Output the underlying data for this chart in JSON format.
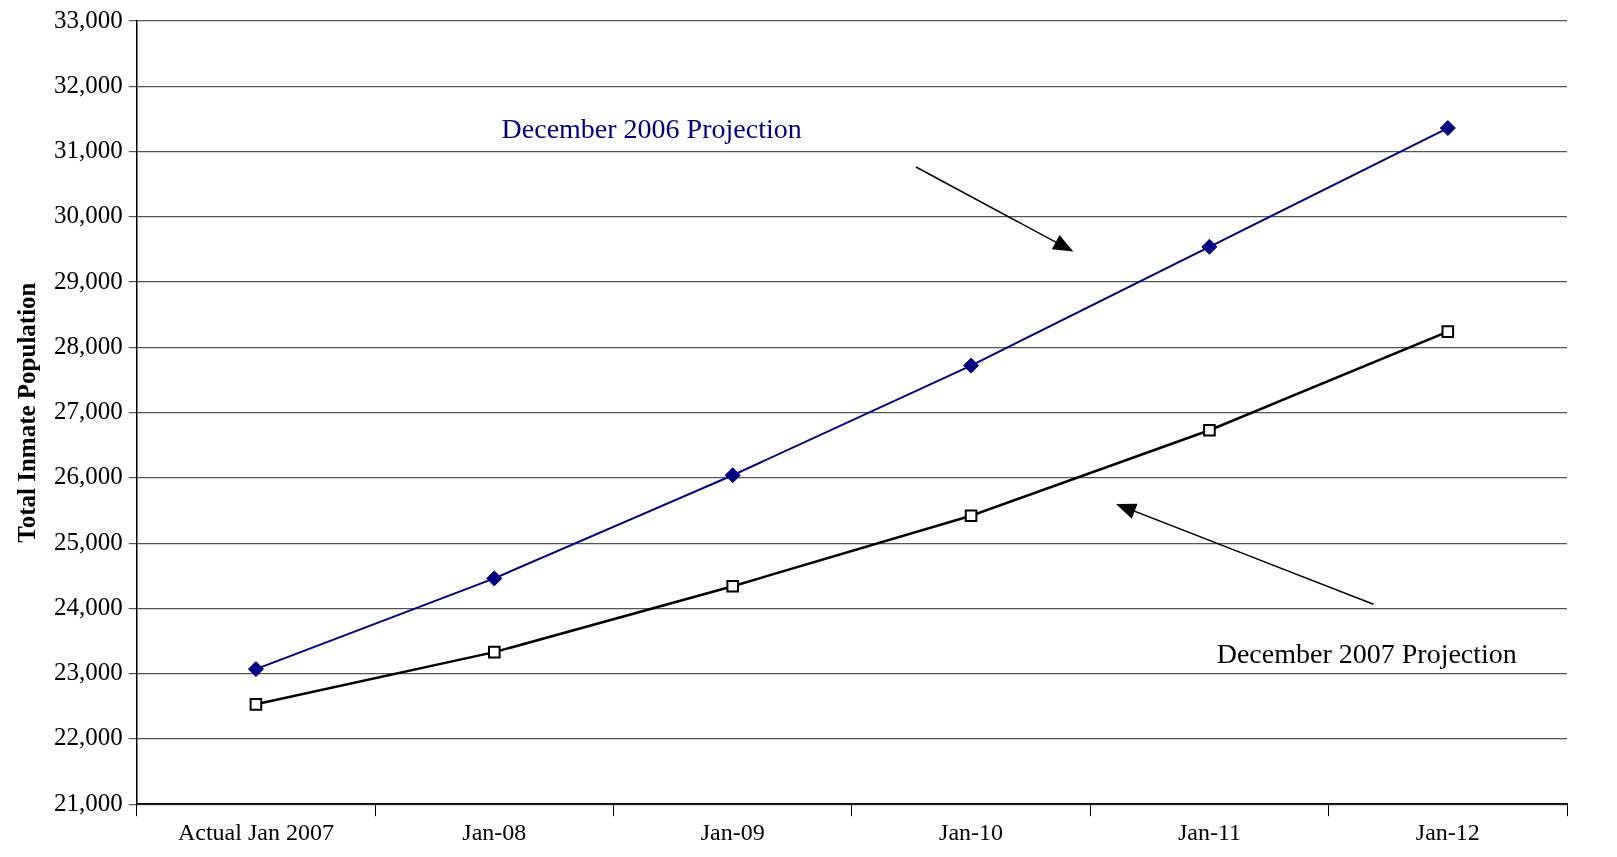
{
  "chart_data": {
    "type": "line",
    "ylabel": "Total Inmate Population",
    "categories": [
      "Actual Jan 2007",
      "Jan-08",
      "Jan-09",
      "Jan-10",
      "Jan-11",
      "Jan-12"
    ],
    "series": [
      {
        "name": "December 2006 Projection",
        "color": "#000080",
        "marker": "diamond",
        "values": [
          23070,
          24460,
          26040,
          27720,
          29540,
          31360
        ]
      },
      {
        "name": "December 2007 Projection",
        "color": "#000000",
        "marker": "square",
        "values": [
          22530,
          23330,
          24340,
          25420,
          26730,
          28240
        ]
      }
    ],
    "ylim": [
      21000,
      33000
    ],
    "yticks": [
      {
        "value": 21000,
        "label": "21,000"
      },
      {
        "value": 22000,
        "label": "22,000"
      },
      {
        "value": 23000,
        "label": "23,000"
      },
      {
        "value": 24000,
        "label": "24,000"
      },
      {
        "value": 25000,
        "label": "25,000"
      },
      {
        "value": 26000,
        "label": "26,000"
      },
      {
        "value": 27000,
        "label": "27,000"
      },
      {
        "value": 28000,
        "label": "28,000"
      },
      {
        "value": 29000,
        "label": "29,000"
      },
      {
        "value": 30000,
        "label": "30,000"
      },
      {
        "value": 31000,
        "label": "31,000"
      },
      {
        "value": 32000,
        "label": "32,000"
      },
      {
        "value": 33000,
        "label": "33,000"
      }
    ],
    "grid": "y",
    "legend": false,
    "line_style": "solid"
  }
}
